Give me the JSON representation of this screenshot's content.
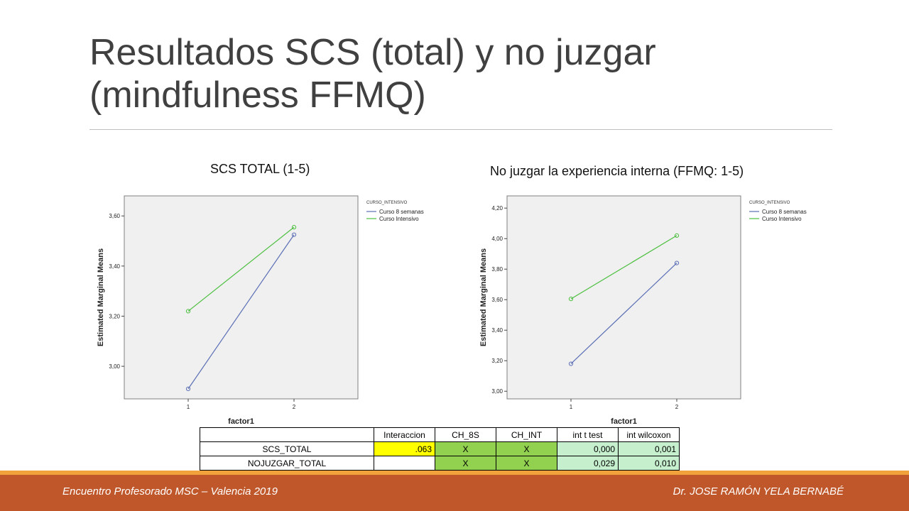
{
  "slide": {
    "title_line1": "Resultados SCS (total) y no juzgar",
    "title_line2": "(mindfulness FFMQ)",
    "subtitle_left": "SCS TOTAL (1-5)",
    "subtitle_right": "No juzgar la experiencia interna (FFMQ: 1-5)"
  },
  "chart_data": [
    {
      "type": "line",
      "ylabel": "Estimated Marginal Means",
      "xlabel": "factor1",
      "x": [
        "1",
        "2"
      ],
      "ylim": [
        2.87,
        3.68
      ],
      "yticks": [
        "3,00",
        "3,20",
        "3,40",
        "3,60"
      ],
      "ytick_values": [
        3.0,
        3.2,
        3.4,
        3.6
      ],
      "legend_title": "CURSO_INTENSIVO",
      "legend_position": "right",
      "series": [
        {
          "name": "Curso 8 semanas",
          "color": "#5b6fb5",
          "values": [
            2.91,
            3.525
          ]
        },
        {
          "name": "Curso Intensivo",
          "color": "#4cbf3f",
          "values": [
            3.22,
            3.555
          ]
        }
      ]
    },
    {
      "type": "line",
      "ylabel": "Estimated Marginal Means",
      "xlabel": "factor1",
      "x": [
        "1",
        "2"
      ],
      "ylim": [
        2.95,
        4.28
      ],
      "yticks": [
        "3,00",
        "3,20",
        "3,40",
        "3,60",
        "3,80",
        "4,00",
        "4,20"
      ],
      "ytick_values": [
        3.0,
        3.2,
        3.4,
        3.6,
        3.8,
        4.0,
        4.2
      ],
      "legend_title": "CURSO_INTENSIVO",
      "legend_position": "right",
      "series": [
        {
          "name": "Curso 8 semanas",
          "color": "#5b6fb5",
          "values": [
            3.18,
            3.84
          ]
        },
        {
          "name": "Curso Intensivo",
          "color": "#4cbf3f",
          "values": [
            3.605,
            4.02
          ]
        }
      ]
    }
  ],
  "table": {
    "headers": [
      "",
      "Interaccion",
      "CH_8S",
      "CH_INT",
      "int t test",
      "int wilcoxon"
    ],
    "rows": [
      [
        "SCS_TOTAL",
        ".063",
        "X",
        "X",
        "0,000",
        "0,001"
      ],
      [
        "NOJUZGAR_TOTAL",
        "",
        "X",
        "X",
        "0,029",
        "0,010"
      ]
    ]
  },
  "footer": {
    "left": "Encuentro Profesorado MSC – Valencia 2019",
    "right": "Dr. JOSE RAMÓN YELA BERNABÉ"
  }
}
